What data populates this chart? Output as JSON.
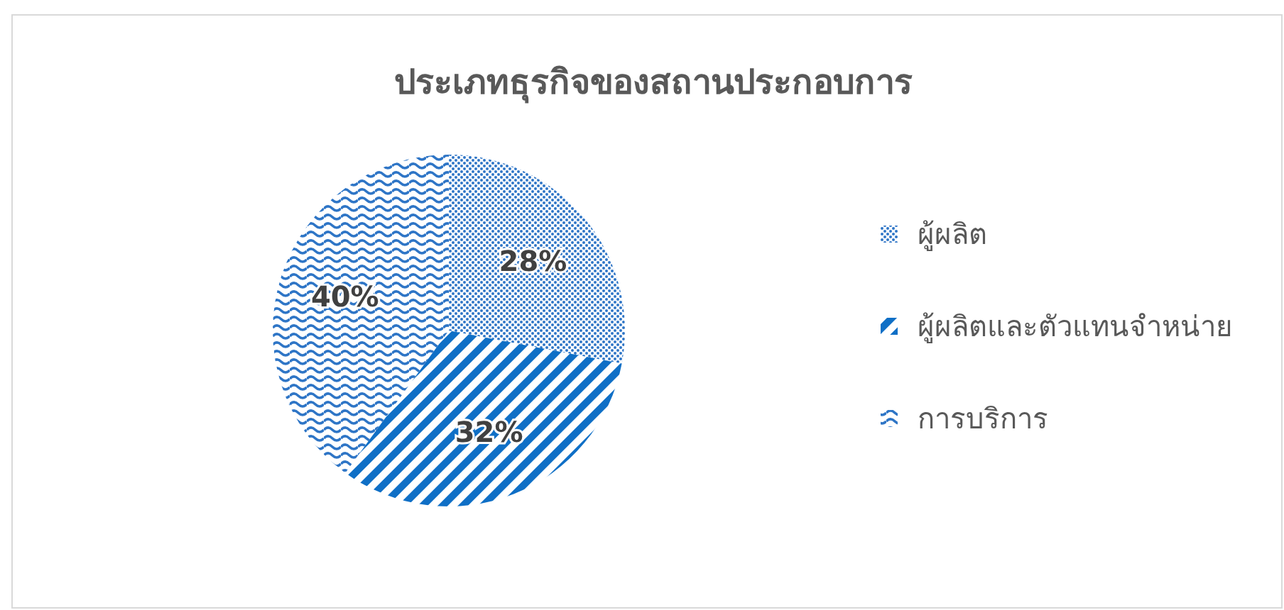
{
  "chart_data": {
    "type": "pie",
    "title": "ประเภทธุรกิจของสถานประกอบการ",
    "categories": [
      "ผู้ผลิต",
      "ผู้ผลิตและตัวแทนจำหน่าย",
      "การบริการ"
    ],
    "values": [
      28,
      32,
      40
    ],
    "colors": [
      "#2e75c6",
      "#0f6fc6",
      "#2e75c6"
    ],
    "value_labels": [
      "28%",
      "32%",
      "40%"
    ],
    "legend": "right"
  }
}
